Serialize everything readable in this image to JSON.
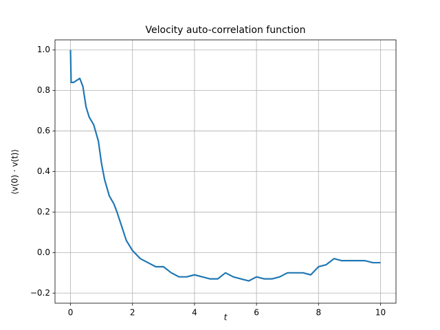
{
  "chart_data": {
    "type": "line",
    "title": "Velocity auto-correlation function",
    "x_label": "t",
    "y_label": "⟨v(0) · v(t)⟩",
    "x": [
      0,
      0.02,
      0.1,
      0.3,
      0.4,
      0.5,
      0.6,
      0.75,
      0.9,
      1.0,
      1.1,
      1.25,
      1.4,
      1.5,
      1.65,
      1.8,
      2.0,
      2.25,
      2.5,
      2.75,
      3.0,
      3.25,
      3.5,
      3.75,
      4.0,
      4.25,
      4.5,
      4.75,
      5.0,
      5.25,
      5.5,
      5.75,
      6.0,
      6.25,
      6.5,
      6.75,
      7.0,
      7.25,
      7.5,
      7.75,
      8.0,
      8.25,
      8.5,
      8.75,
      9.0,
      9.25,
      9.5,
      9.75,
      10.0
    ],
    "values": [
      1.0,
      0.84,
      0.84,
      0.86,
      0.82,
      0.72,
      0.67,
      0.63,
      0.55,
      0.44,
      0.36,
      0.28,
      0.24,
      0.2,
      0.13,
      0.06,
      0.01,
      -0.03,
      -0.05,
      -0.07,
      -0.07,
      -0.1,
      -0.12,
      -0.12,
      -0.11,
      -0.12,
      -0.13,
      -0.13,
      -0.1,
      -0.12,
      -0.13,
      -0.14,
      -0.12,
      -0.13,
      -0.13,
      -0.12,
      -0.1,
      -0.1,
      -0.1,
      -0.11,
      -0.07,
      -0.06,
      -0.03,
      -0.04,
      -0.04,
      -0.04,
      -0.04,
      -0.05,
      -0.05
    ],
    "color": "#1f77b4",
    "xlim": [
      -0.5,
      10.5
    ],
    "ylim": [
      -0.25,
      1.05
    ],
    "xticks": [
      0,
      2,
      4,
      6,
      8,
      10
    ],
    "yticks": [
      {
        "value": -0.2,
        "label": "−0.2"
      },
      {
        "value": 0,
        "label": "0.0"
      },
      {
        "value": 0.2,
        "label": "0.2"
      },
      {
        "value": 0.4,
        "label": "0.4"
      },
      {
        "value": 0.6,
        "label": "0.6"
      },
      {
        "value": 0.8,
        "label": "0.8"
      },
      {
        "value": 1.0,
        "label": "1.0"
      }
    ],
    "grid": true
  }
}
